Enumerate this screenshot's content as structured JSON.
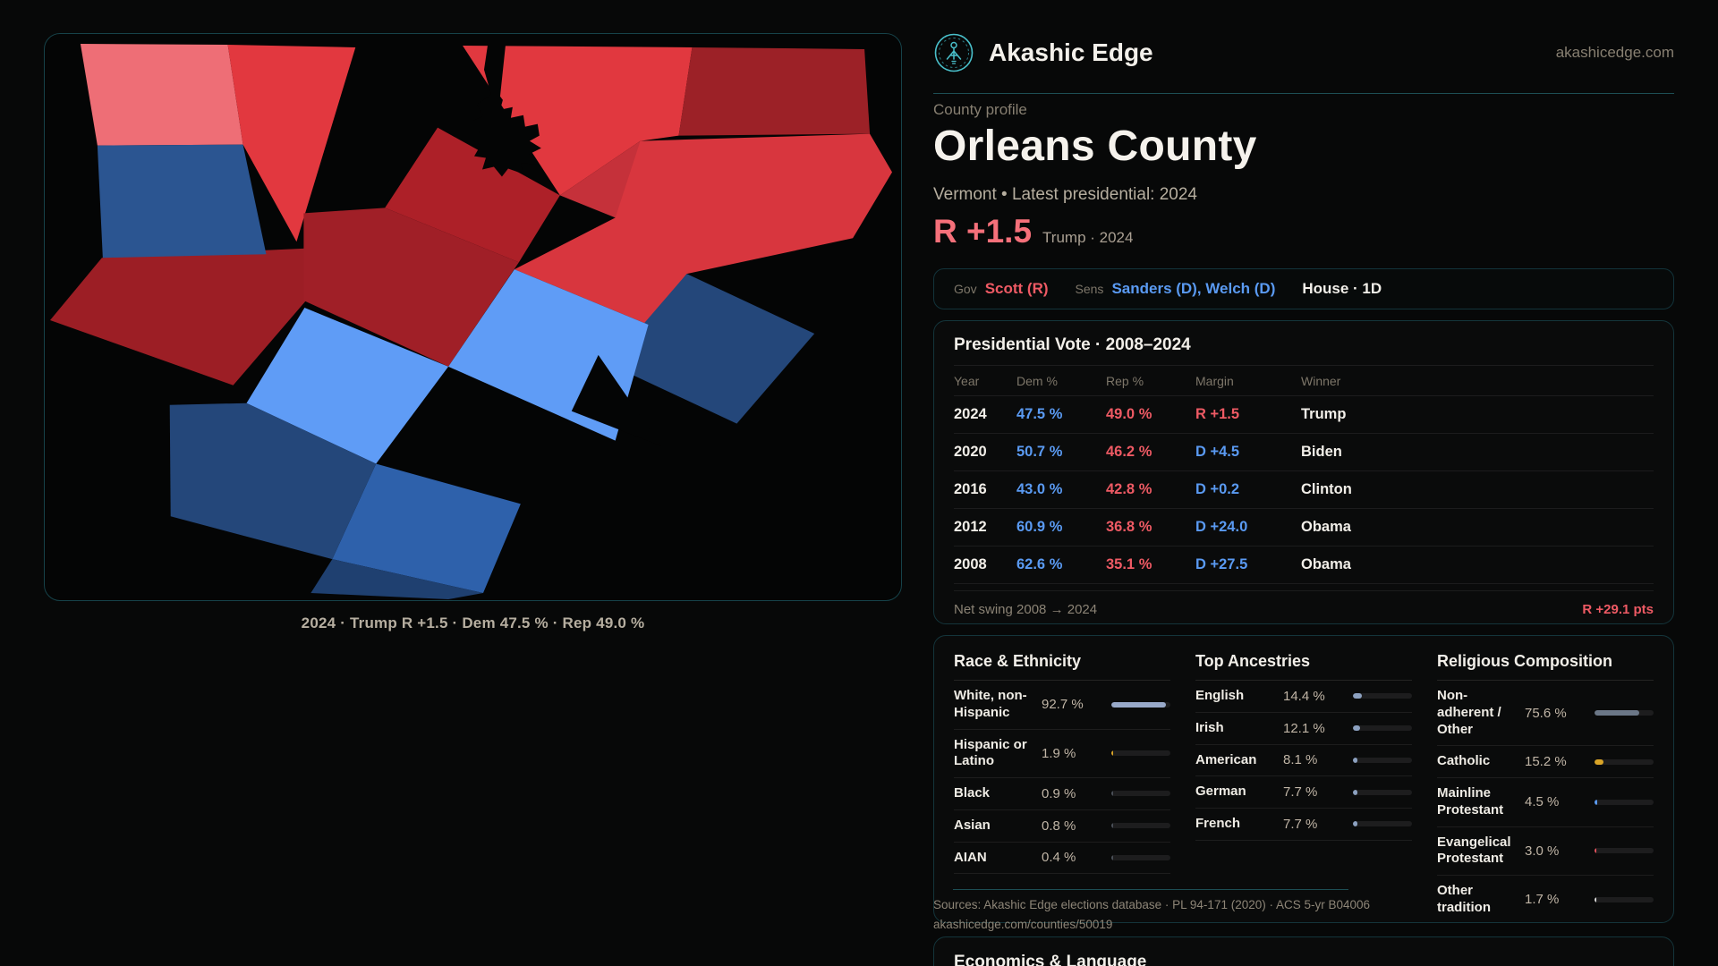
{
  "site": {
    "brand": "Akashic Edge",
    "domain": "akashicedge.com"
  },
  "palette": {
    "accent_teal": "#49bfca",
    "dem_blue": "#5a9af2",
    "rep_red": "#ee5a64",
    "headline_red": "#f5707a"
  },
  "map": {
    "caption": "2024 · Trump R +1.5 · Dem 47.5 % · Rep 49.0 %"
  },
  "profile": {
    "eyebrow": "County profile",
    "title": "Orleans County",
    "subtitle": "Vermont • Latest presidential: 2024",
    "headline_margin": "R +1.5",
    "headline_context": "Trump · 2024"
  },
  "officials": {
    "gov_label": "Gov",
    "gov": "Scott (R)",
    "sens_label": "Sens",
    "sens": "Sanders (D), Welch (D)",
    "house": "House · 1D"
  },
  "presidential": {
    "title": "Presidential Vote · 2008–2024",
    "columns": {
      "year": "Year",
      "dem": "Dem %",
      "rep": "Rep %",
      "margin": "Margin",
      "winner": "Winner"
    },
    "rows": [
      {
        "year": "2024",
        "dem": "47.5 %",
        "rep": "49.0 %",
        "margin": "R +1.5",
        "party": "R",
        "winner": "Trump"
      },
      {
        "year": "2020",
        "dem": "50.7 %",
        "rep": "46.2 %",
        "margin": "D +4.5",
        "party": "D",
        "winner": "Biden"
      },
      {
        "year": "2016",
        "dem": "43.0 %",
        "rep": "42.8 %",
        "margin": "D +0.2",
        "party": "D",
        "winner": "Clinton"
      },
      {
        "year": "2012",
        "dem": "60.9 %",
        "rep": "36.8 %",
        "margin": "D +24.0",
        "party": "D",
        "winner": "Obama"
      },
      {
        "year": "2008",
        "dem": "62.6 %",
        "rep": "35.1 %",
        "margin": "D +27.5",
        "party": "D",
        "winner": "Obama"
      }
    ],
    "net_swing_label": "Net swing 2008 → 2024",
    "net_swing_value": "R +29.1 pts"
  },
  "demographics": {
    "race": {
      "title": "Race & Ethnicity",
      "items": [
        {
          "label": "White, non-Hispanic",
          "value": "92.7 %",
          "pct": 92.7,
          "color": "#98a9c9"
        },
        {
          "label": "Hispanic or Latino",
          "value": "1.9 %",
          "pct": 1.9,
          "color": "#d9a427"
        },
        {
          "label": "Black",
          "value": "0.9 %",
          "pct": 0.9,
          "color": "#4a4f57"
        },
        {
          "label": "Asian",
          "value": "0.8 %",
          "pct": 0.8,
          "color": "#4a4f57"
        },
        {
          "label": "AIAN",
          "value": "0.4 %",
          "pct": 0.4,
          "color": "#4a4f57"
        }
      ]
    },
    "ancestries": {
      "title": "Top Ancestries",
      "items": [
        {
          "label": "English",
          "value": "14.4 %",
          "pct": 14.4,
          "color": "#8ca1c0"
        },
        {
          "label": "Irish",
          "value": "12.1 %",
          "pct": 12.1,
          "color": "#8ca1c0"
        },
        {
          "label": "American",
          "value": "8.1 %",
          "pct": 8.1,
          "color": "#8ca1c0"
        },
        {
          "label": "German",
          "value": "7.7 %",
          "pct": 7.7,
          "color": "#8ca1c0"
        },
        {
          "label": "French",
          "value": "7.7 %",
          "pct": 7.7,
          "color": "#8ca1c0"
        }
      ]
    },
    "religion": {
      "title": "Religious Composition",
      "items": [
        {
          "label": "Non-adherent / Other",
          "value": "75.6 %",
          "pct": 75.6,
          "color": "#6b7787"
        },
        {
          "label": "Catholic",
          "value": "15.2 %",
          "pct": 15.2,
          "color": "#d9a427"
        },
        {
          "label": "Mainline Protestant",
          "value": "4.5 %",
          "pct": 4.5,
          "color": "#5a9af2"
        },
        {
          "label": "Evangelical Protestant",
          "value": "3.0 %",
          "pct": 3.0,
          "color": "#e2525c"
        },
        {
          "label": "Other tradition",
          "value": "1.7 %",
          "pct": 1.7,
          "color": "#d9d9d9"
        }
      ]
    }
  },
  "sources": {
    "line1": "Sources: Akashic Edge elections database · PL 94-171 (2020) · ACS 5-yr B04006",
    "line2": "akashicedge.com/counties/50019"
  },
  "economics": {
    "title": "Economics & Language"
  }
}
